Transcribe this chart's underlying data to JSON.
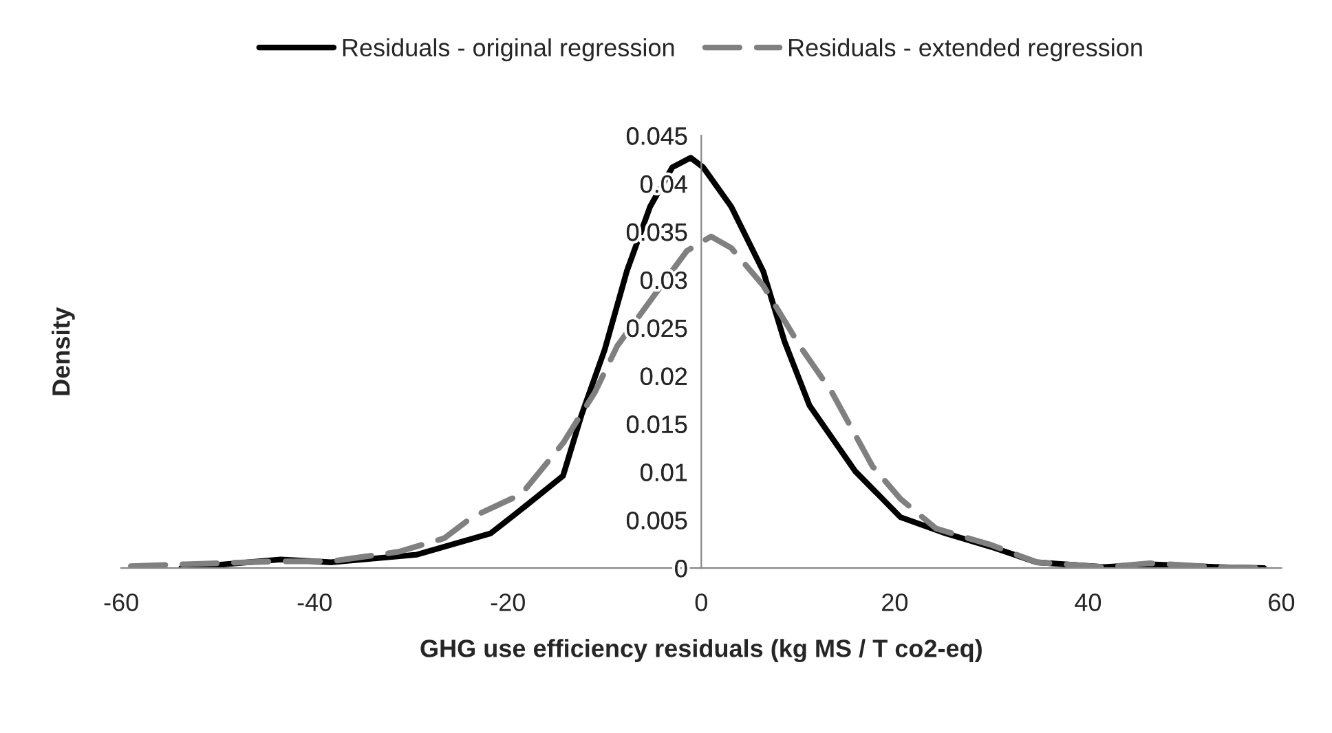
{
  "chart_data": {
    "type": "line",
    "xlabel": "GHG use efficiency residuals (kg MS / T co2-eq)",
    "ylabel": "Density",
    "xlim": [
      -60,
      60
    ],
    "xticks": [
      -60,
      -40,
      -20,
      0,
      20,
      40,
      60
    ],
    "ylim": [
      0,
      0.045
    ],
    "yticks": [
      0,
      0.005,
      0.01,
      0.015,
      0.02,
      0.025,
      0.03,
      0.035,
      0.04,
      0.045
    ],
    "grid": false,
    "legend": "top",
    "marker": "none",
    "series": [
      {
        "name": "Residuals - original regression",
        "color": "#000000",
        "line_style": "solid",
        "x": [
          -53.8,
          -43.5,
          -38.3,
          -29.4,
          -21.8,
          -19.0,
          -14.3,
          -12.4,
          -10.0,
          -7.7,
          -5.3,
          -3.0,
          -1.1,
          0.2,
          3.1,
          6.4,
          8.6,
          11.2,
          15.9,
          20.6,
          25.3,
          30.0,
          34.7,
          41.7,
          46.4,
          53.5,
          58.2
        ],
        "values": [
          0,
          0.0009,
          0.0006,
          0.0014,
          0.0036,
          0.0058,
          0.0096,
          0.0159,
          0.0227,
          0.0309,
          0.0376,
          0.0417,
          0.0427,
          0.0417,
          0.0376,
          0.0309,
          0.0236,
          0.0169,
          0.0101,
          0.0053,
          0.0036,
          0.0022,
          0.0006,
          0.0001,
          0.0004,
          0.0001,
          0
        ]
      },
      {
        "name": "Residuals - extended regression",
        "color": "#808080",
        "line_style": "dashed",
        "x": [
          -59.0,
          -53.4,
          -44.0,
          -38.3,
          -31.3,
          -26.6,
          -23.7,
          -18.6,
          -14.3,
          -11.0,
          -8.7,
          -3.4,
          -1.5,
          1.0,
          3.1,
          6.4,
          10.2,
          13.5,
          17.7,
          20.6,
          24.3,
          30.0,
          34.7,
          41.7,
          46.4,
          53.5,
          58.6
        ],
        "values": [
          0.0002,
          0.0004,
          0.0007,
          0.0007,
          0.0017,
          0.0031,
          0.0053,
          0.0077,
          0.013,
          0.0183,
          0.0231,
          0.0304,
          0.033,
          0.0345,
          0.0333,
          0.0294,
          0.0231,
          0.0183,
          0.0106,
          0.0072,
          0.0041,
          0.0024,
          0.0006,
          0.0001,
          0.0005,
          0.0001,
          0
        ]
      }
    ]
  }
}
